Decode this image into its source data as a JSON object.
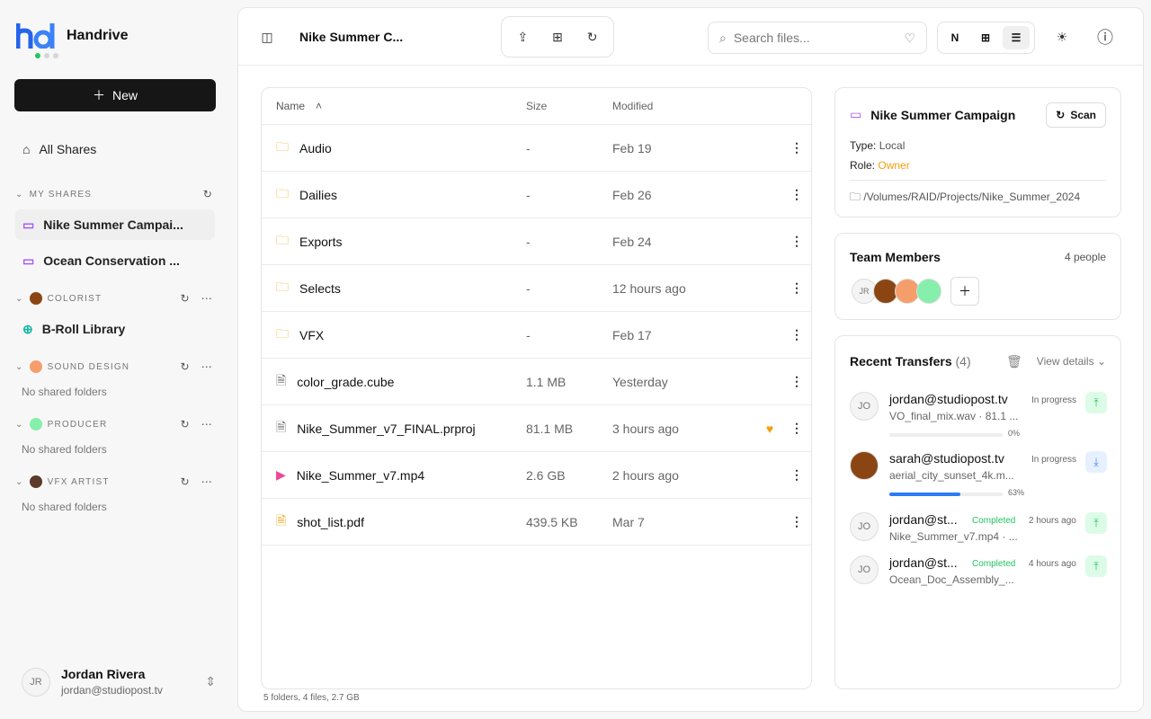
{
  "app": {
    "name": "Handrive",
    "logo_text": "hd"
  },
  "sidebar": {
    "new_label": "New",
    "all_shares": "All Shares",
    "my_shares": {
      "title": "MY SHARES",
      "items": [
        "Nike Summer Campai...",
        "Ocean Conservation ..."
      ]
    },
    "groups": [
      {
        "title": "COLORIST",
        "items": [
          "B-Roll Library"
        ],
        "avatar_color": "#8b4513"
      },
      {
        "title": "SOUND DESIGN",
        "empty": "No shared folders",
        "avatar_color": "#f59e6b"
      },
      {
        "title": "PRODUCER",
        "empty": "No shared folders",
        "avatar_color": "#86efac"
      },
      {
        "title": "VFX ARTIST",
        "empty": "No shared folders",
        "avatar_color": "#5b3a29"
      }
    ],
    "user": {
      "initials": "JR",
      "name": "Jordan Rivera",
      "email": "jordan@studiopost.tv"
    }
  },
  "topbar": {
    "title": "Nike Summer C...",
    "search_placeholder": "Search files...",
    "view_n": "N"
  },
  "table": {
    "headers": {
      "name": "Name",
      "size": "Size",
      "modified": "Modified"
    },
    "rows": [
      {
        "name": "Audio",
        "size": "-",
        "modified": "Feb 19",
        "type": "folder"
      },
      {
        "name": "Dailies",
        "size": "-",
        "modified": "Feb 26",
        "type": "folder"
      },
      {
        "name": "Exports",
        "size": "-",
        "modified": "Feb 24",
        "type": "folder"
      },
      {
        "name": "Selects",
        "size": "-",
        "modified": "12 hours ago",
        "type": "folder"
      },
      {
        "name": "VFX",
        "size": "-",
        "modified": "Feb 17",
        "type": "folder"
      },
      {
        "name": "color_grade.cube",
        "size": "1.1 MB",
        "modified": "Yesterday",
        "type": "file"
      },
      {
        "name": "Nike_Summer_v7_FINAL.prproj",
        "size": "81.1 MB",
        "modified": "3 hours ago",
        "type": "file",
        "favorite": true
      },
      {
        "name": "Nike_Summer_v7.mp4",
        "size": "2.6 GB",
        "modified": "2 hours ago",
        "type": "video"
      },
      {
        "name": "shot_list.pdf",
        "size": "439.5 KB",
        "modified": "Mar 7",
        "type": "pdf"
      }
    ],
    "footer": "5 folders, 4 files, 2.7 GB"
  },
  "info": {
    "title": "Nike Summer Campaign",
    "scan": "Scan",
    "type_label": "Type:",
    "type": "Local",
    "role_label": "Role:",
    "role": "Owner",
    "path": "/Volumes/RAID/Projects/Nike_Summer_2024",
    "role_color": "#f59e0b"
  },
  "team": {
    "title": "Team Members",
    "count": "4 people",
    "initials": "JR"
  },
  "transfers": {
    "title": "Recent Transfers",
    "count": "(4)",
    "view": "View details",
    "items": [
      {
        "initials": "JO",
        "user": "jordan@studiopost.tv",
        "file": "VO_final_mix.wav · 81.1 ...",
        "status": "In progress",
        "progress": 0,
        "progress_label": "0%",
        "dir": "upload"
      },
      {
        "initials": "",
        "user": "sarah@studiopost.tv",
        "file": "aerial_city_sunset_4k.m...",
        "status": "In progress",
        "progress": 63,
        "progress_label": "63%",
        "dir": "download"
      },
      {
        "initials": "JO",
        "user": "jordan@st...",
        "file": "Nike_Summer_v7.mp4 · ...",
        "status": "Completed",
        "time": "2 hours ago",
        "dir": "upload"
      },
      {
        "initials": "JO",
        "user": "jordan@st...",
        "file": "Ocean_Doc_Assembly_...",
        "status": "Completed",
        "time": "4 hours ago",
        "dir": "upload"
      }
    ]
  }
}
